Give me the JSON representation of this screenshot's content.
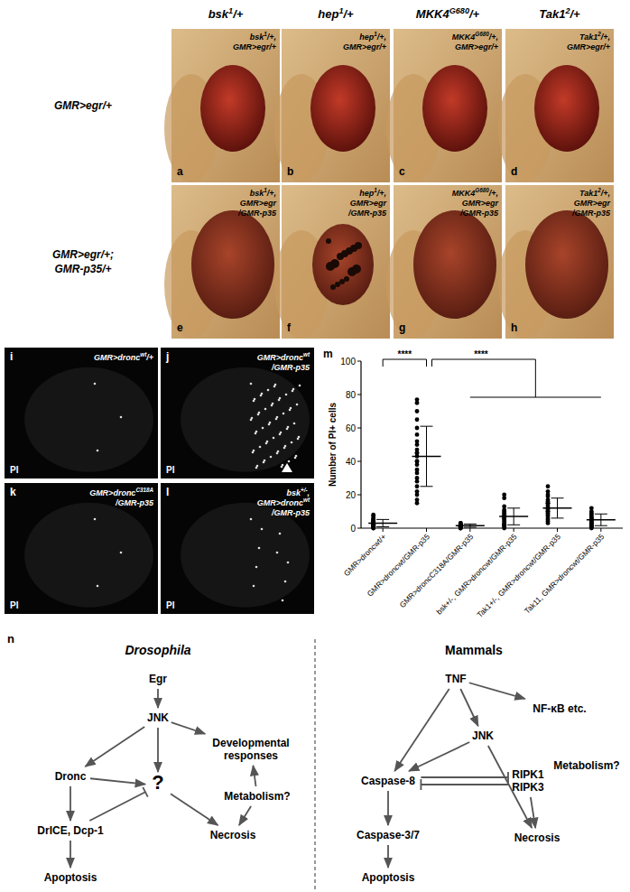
{
  "column_headers": [
    [
      "bsk",
      {
        "sup": "1"
      },
      "/+"
    ],
    [
      "hep",
      {
        "sup": "1"
      },
      "/+"
    ],
    [
      "MKK4",
      {
        "sup": "G680"
      },
      "/+"
    ],
    [
      "Tak1",
      {
        "sup": "2"
      },
      "/+"
    ]
  ],
  "row_headers": [
    [
      [
        "GMR>egr/+"
      ]
    ],
    [
      [
        "GMR>egr/+;"
      ],
      [
        "GMR-p35/+"
      ]
    ]
  ],
  "photos": [
    {
      "letter": "a",
      "genotype": [
        [
          "bsk",
          {
            "sup": "1"
          },
          "/+,"
        ],
        [
          "GMR>egr/+"
        ]
      ]
    },
    {
      "letter": "b",
      "genotype": [
        [
          "hep",
          {
            "sup": "1"
          },
          "/+,"
        ],
        [
          "GMR>egr/+"
        ]
      ]
    },
    {
      "letter": "c",
      "genotype": [
        [
          "MKK4",
          {
            "sup": "G680"
          },
          "/+,"
        ],
        [
          "GMR>egr/+"
        ]
      ]
    },
    {
      "letter": "d",
      "genotype": [
        [
          "Tak1",
          {
            "sup": "2"
          },
          "/+,"
        ],
        [
          "GMR>egr/+"
        ]
      ]
    },
    {
      "letter": "e",
      "genotype": [
        [
          "bsk",
          {
            "sup": "1"
          },
          "/+,"
        ],
        [
          "GMR>egr"
        ],
        [
          "/GMR-p35"
        ]
      ]
    },
    {
      "letter": "f",
      "genotype": [
        [
          "hep",
          {
            "sup": "1"
          },
          "/+,"
        ],
        [
          "GMR>egr"
        ],
        [
          "/GMR-p35"
        ]
      ]
    },
    {
      "letter": "g",
      "genotype": [
        [
          "MKK4",
          {
            "sup": "G680"
          },
          "/+,"
        ],
        [
          "GMR>egr"
        ],
        [
          "/GMR-p35"
        ]
      ]
    },
    {
      "letter": "h",
      "genotype": [
        [
          "Tak1",
          {
            "sup": "2"
          },
          "/+,"
        ],
        [
          "GMR>egr"
        ],
        [
          "/GMR-p35"
        ]
      ]
    }
  ],
  "pi_panels": [
    {
      "letter": "i",
      "channel": "PI",
      "genotype": [
        [
          "GMR>dronc",
          {
            "sup": "wt"
          },
          "/+"
        ]
      ]
    },
    {
      "letter": "j",
      "channel": "PI",
      "genotype": [
        [
          "GMR>dronc",
          {
            "sup": "wt"
          }
        ],
        [
          "/GMR-p35"
        ]
      ]
    },
    {
      "letter": "k",
      "channel": "PI",
      "genotype": [
        [
          "GMR>dronc",
          {
            "sup": "C318A"
          }
        ],
        [
          "/GMR-p35"
        ]
      ]
    },
    {
      "letter": "l",
      "channel": "PI",
      "genotype": [
        [
          "bsk",
          {
            "sup": "+/-"
          },
          ","
        ],
        [
          "GMR>dronc",
          {
            "sup": "wt"
          }
        ],
        [
          "/GMR-p35"
        ]
      ]
    }
  ],
  "chart_panel_letter": "m",
  "chart_data": {
    "type": "scatter",
    "y_label": "Number of PI+ cells",
    "categories": [
      "GMR>droncwt/+",
      "GMR>droncwt/GMR-p35",
      "GMR>droncC318A/GMR-p35",
      "bsk+/-, GMR>droncwt/GMR-p35",
      "Tak1+/-, GMR>droncwt/GMR-p35",
      "Tak11, GMR>droncwt/GMR-p35"
    ],
    "points": [
      [
        0,
        1,
        1,
        2,
        2,
        3,
        3,
        4,
        5,
        6,
        7,
        8,
        1,
        2,
        3,
        0,
        1,
        4,
        2,
        5
      ],
      [
        77,
        75,
        70,
        65,
        60,
        56,
        52,
        50,
        47,
        45,
        43,
        40,
        38,
        35,
        33,
        30,
        28,
        25,
        22,
        20,
        17,
        15,
        45,
        40
      ],
      [
        0,
        1,
        1,
        2,
        2,
        3,
        1,
        0,
        2,
        1,
        3
      ],
      [
        20,
        18,
        13,
        11,
        10,
        9,
        8,
        7,
        6,
        5,
        4,
        3,
        2,
        1,
        0,
        2,
        6
      ],
      [
        25,
        22,
        20,
        19,
        17,
        16,
        15,
        14,
        13,
        12,
        12,
        11,
        10,
        9,
        8,
        7,
        6,
        5,
        4,
        3,
        15,
        10
      ],
      [
        12,
        10,
        9,
        8,
        7,
        6,
        5,
        5,
        4,
        4,
        3,
        3,
        2,
        2,
        1,
        1,
        0,
        6
      ]
    ],
    "mean": [
      3,
      43,
      1.5,
      7,
      12,
      5
    ],
    "sd": [
      2.2,
      18,
      1,
      5,
      6,
      3.5
    ],
    "color": "#000000",
    "marker": "circle",
    "ylim": [
      0,
      100
    ],
    "yticks": [
      0,
      20,
      40,
      60,
      80,
      100
    ],
    "annotations": [
      "****",
      "****"
    ]
  },
  "diagram": {
    "letter": "n",
    "left": {
      "title": "Drosophila",
      "nodes": [
        [
          "Egr"
        ],
        [
          "JNK"
        ],
        [
          "Developmental",
          "responses"
        ],
        [
          "Dronc"
        ],
        [
          "?"
        ],
        [
          "Metabolism?"
        ],
        [
          "DrICE, Dcp-1"
        ],
        [
          "Necrosis"
        ],
        [
          "Apoptosis"
        ]
      ]
    },
    "right": {
      "title": "Mammals",
      "nodes": [
        [
          "TNF"
        ],
        [
          "NF-κB etc."
        ],
        [
          "JNK"
        ],
        [
          "Caspase-8"
        ],
        [
          "RIPK1",
          "RIPK3"
        ],
        [
          "Metabolism?"
        ],
        [
          "Caspase-3/7"
        ],
        [
          "Necrosis"
        ],
        [
          "Apoptosis"
        ]
      ]
    }
  }
}
